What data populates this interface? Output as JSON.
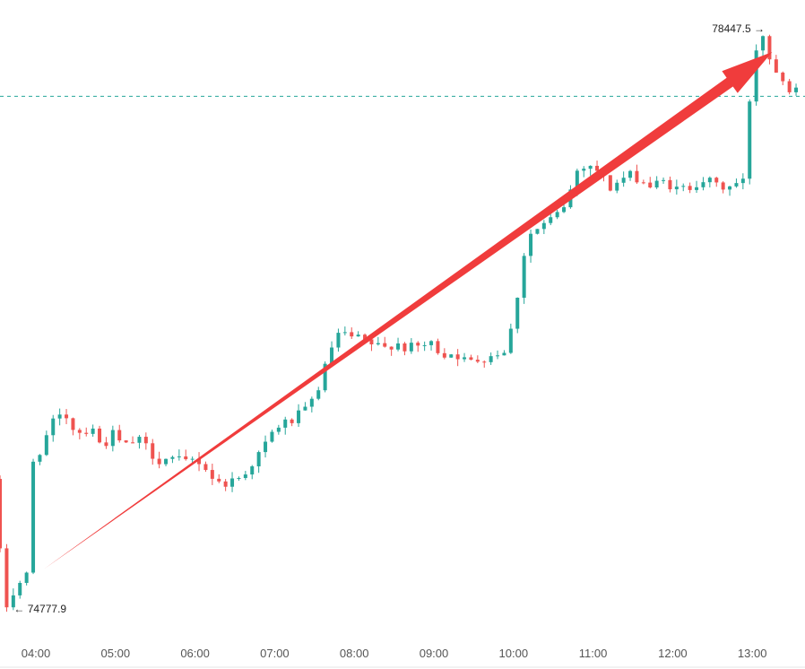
{
  "chart_data": {
    "type": "candlestick",
    "x_axis": {
      "tick_labels": [
        "04:00",
        "05:00",
        "06:00",
        "07:00",
        "08:00",
        "09:00",
        "10:00",
        "11:00",
        "12:00",
        "13:00"
      ]
    },
    "annotations": {
      "high_label": "78447.5",
      "low_label": "74777.9",
      "high_arrow": "→",
      "low_arrow": "←"
    },
    "reference_line": {
      "value": 78020,
      "style": "dashed"
    },
    "ylim": [
      74700,
      78550
    ],
    "colors": {
      "up": "#26a69a",
      "down": "#ef5350",
      "trend_arrow": "#f03c3c",
      "reference_line": "#26a69a"
    },
    "price_path": [
      [
        3.55,
        75600
      ],
      [
        3.62,
        75200
      ],
      [
        3.7,
        74780
      ],
      [
        3.8,
        74880
      ],
      [
        3.9,
        74960
      ],
      [
        4.0,
        75000
      ],
      [
        4.05,
        75700
      ],
      [
        4.15,
        75800
      ],
      [
        4.3,
        75950
      ],
      [
        4.45,
        76010
      ],
      [
        4.6,
        75890
      ],
      [
        4.8,
        75930
      ],
      [
        4.9,
        75800
      ],
      [
        5.05,
        75880
      ],
      [
        5.2,
        75800
      ],
      [
        5.35,
        75850
      ],
      [
        5.5,
        75790
      ],
      [
        5.6,
        75720
      ],
      [
        5.75,
        75730
      ],
      [
        5.95,
        75700
      ],
      [
        6.1,
        75730
      ],
      [
        6.25,
        75650
      ],
      [
        6.35,
        75570
      ],
      [
        6.5,
        75580
      ],
      [
        6.65,
        75610
      ],
      [
        6.8,
        75700
      ],
      [
        6.95,
        75800
      ],
      [
        7.1,
        75930
      ],
      [
        7.3,
        75970
      ],
      [
        7.5,
        76040
      ],
      [
        7.65,
        76200
      ],
      [
        7.75,
        76350
      ],
      [
        7.85,
        76510
      ],
      [
        8.0,
        76500
      ],
      [
        8.15,
        76480
      ],
      [
        8.3,
        76450
      ],
      [
        8.45,
        76420
      ],
      [
        8.6,
        76470
      ],
      [
        8.75,
        76420
      ],
      [
        8.9,
        76440
      ],
      [
        9.05,
        76450
      ],
      [
        9.2,
        76390
      ],
      [
        9.35,
        76400
      ],
      [
        9.5,
        76330
      ],
      [
        9.7,
        76370
      ],
      [
        9.9,
        76400
      ],
      [
        10.0,
        76430
      ],
      [
        10.1,
        76650
      ],
      [
        10.2,
        77000
      ],
      [
        10.3,
        77150
      ],
      [
        10.45,
        77200
      ],
      [
        10.6,
        77250
      ],
      [
        10.75,
        77350
      ],
      [
        10.88,
        77550
      ],
      [
        11.0,
        77600
      ],
      [
        11.15,
        77550
      ],
      [
        11.3,
        77440
      ],
      [
        11.45,
        77500
      ],
      [
        11.6,
        77520
      ],
      [
        11.8,
        77450
      ],
      [
        12.0,
        77480
      ],
      [
        12.15,
        77420
      ],
      [
        12.3,
        77450
      ],
      [
        12.45,
        77500
      ],
      [
        12.6,
        77460
      ],
      [
        12.75,
        77440
      ],
      [
        12.9,
        77470
      ],
      [
        13.0,
        77480
      ],
      [
        13.05,
        78000
      ],
      [
        13.12,
        78300
      ],
      [
        13.2,
        78447
      ],
      [
        13.3,
        78260
      ],
      [
        13.45,
        78150
      ],
      [
        13.55,
        78080
      ]
    ]
  }
}
